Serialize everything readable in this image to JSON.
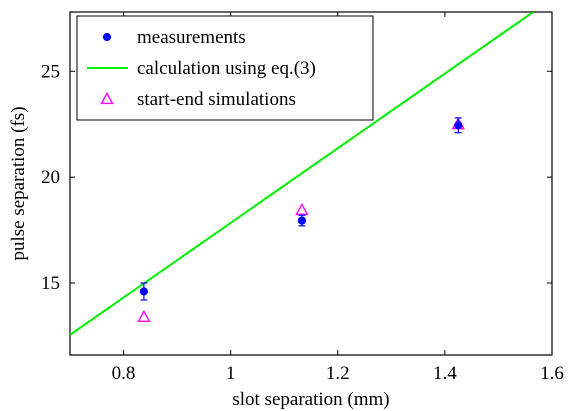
{
  "chart_data": {
    "type": "scatter",
    "title": "",
    "xlabel": "slot separation (mm)",
    "ylabel": "pulse separation (fs)",
    "xlim": [
      0.7,
      1.6
    ],
    "ylim": [
      11.6,
      27.8
    ],
    "xticks": [
      0.8,
      1,
      1.2,
      1.4,
      1.6
    ],
    "xtick_labels": [
      "0.8",
      "1",
      "1.2",
      "1.4",
      "1.6"
    ],
    "yticks": [
      15,
      20,
      25
    ],
    "ytick_labels": [
      "15",
      "20",
      "25"
    ],
    "grid": false,
    "legend_position": "top-left",
    "series": [
      {
        "name": "measurements",
        "kind": "points-with-errorbars",
        "marker": "filled-circle",
        "color": "#0000ff",
        "x": [
          0.838,
          1.133,
          1.425
        ],
        "y": [
          14.6,
          17.95,
          22.45
        ],
        "err": [
          0.4,
          0.25,
          0.35
        ]
      },
      {
        "name": "calculation using eq.(3)",
        "kind": "line",
        "color": "#00ee00",
        "x": [
          0.7,
          1.565
        ],
        "y": [
          12.55,
          27.8
        ]
      },
      {
        "name": "start-end simulations",
        "kind": "points",
        "marker": "open-triangle",
        "color": "#ff00ff",
        "x": [
          0.838,
          1.133,
          1.425
        ],
        "y": [
          13.4,
          18.45,
          22.5
        ]
      }
    ]
  }
}
